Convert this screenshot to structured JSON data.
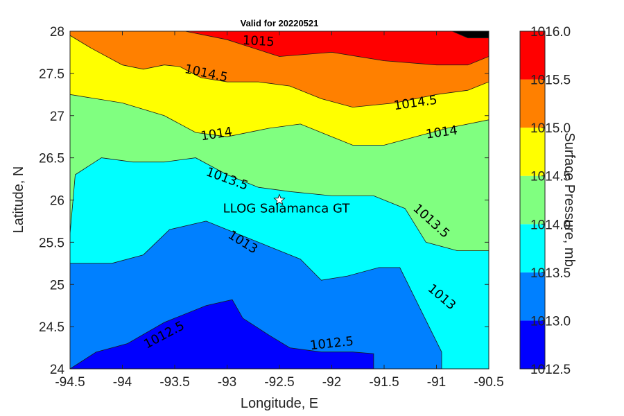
{
  "chart_data": {
    "type": "contour",
    "title": "Valid for 20220521",
    "xlabel": "Longitude, E",
    "ylabel": "Latitude, N",
    "xlim": [
      -94.5,
      -90.5
    ],
    "ylim": [
      24,
      28
    ],
    "xticks": [
      "-94.5",
      "-94",
      "-93.5",
      "-93",
      "-92.5",
      "-92",
      "-91.5",
      "-91",
      "-90.5"
    ],
    "yticks": [
      "24",
      "24.5",
      "25",
      "25.5",
      "26",
      "26.5",
      "27",
      "27.5",
      "28"
    ],
    "levels": [
      1012.5,
      1013.0,
      1013.5,
      1014.0,
      1014.5,
      1015.0,
      1015.5,
      1016.0
    ],
    "level_colors": [
      "#0000ff",
      "#0080ff",
      "#00ffff",
      "#80ff80",
      "#ffff00",
      "#ff8000",
      "#ff0000"
    ],
    "colorbar": {
      "label": "Surface Pressure, mb",
      "ticks": [
        "1012.5",
        "1013.0",
        "1013.5",
        "1014.0",
        "1014.5",
        "1015.0",
        "1015.5",
        "1016.0"
      ]
    },
    "contours": [
      {
        "level": 1012.5,
        "points": [
          [
            -94.5,
            24.0
          ],
          [
            -94.25,
            24.2
          ],
          [
            -93.95,
            24.3
          ],
          [
            -93.6,
            24.55
          ],
          [
            -93.2,
            24.75
          ],
          [
            -92.95,
            24.82
          ],
          [
            -92.85,
            24.6
          ],
          [
            -92.6,
            24.4
          ],
          [
            -92.4,
            24.25
          ],
          [
            -92.1,
            24.2
          ],
          [
            -91.8,
            24.2
          ],
          [
            -91.6,
            24.18
          ],
          [
            -91.6,
            24.0
          ]
        ]
      },
      {
        "level": 1013.0,
        "points": [
          [
            -94.5,
            25.25
          ],
          [
            -94.1,
            25.25
          ],
          [
            -93.8,
            25.35
          ],
          [
            -93.55,
            25.65
          ],
          [
            -93.2,
            25.75
          ],
          [
            -92.9,
            25.6
          ],
          [
            -92.6,
            25.45
          ],
          [
            -92.3,
            25.3
          ],
          [
            -92.1,
            25.05
          ],
          [
            -91.85,
            25.1
          ],
          [
            -91.55,
            25.2
          ],
          [
            -91.35,
            25.2
          ],
          [
            -91.15,
            24.7
          ],
          [
            -90.95,
            24.2
          ],
          [
            -90.95,
            24.0
          ]
        ]
      },
      {
        "level": 1013.5,
        "points": [
          [
            -94.5,
            25.6
          ],
          [
            -94.45,
            26.3
          ],
          [
            -94.2,
            26.5
          ],
          [
            -93.9,
            26.45
          ],
          [
            -93.6,
            26.45
          ],
          [
            -93.3,
            26.5
          ],
          [
            -93.0,
            26.3
          ],
          [
            -92.7,
            26.15
          ],
          [
            -92.4,
            26.1
          ],
          [
            -92.0,
            26.05
          ],
          [
            -91.6,
            26.05
          ],
          [
            -91.3,
            25.9
          ],
          [
            -91.1,
            25.5
          ],
          [
            -90.8,
            25.4
          ],
          [
            -90.5,
            25.4
          ]
        ]
      },
      {
        "level": 1014.0,
        "points": [
          [
            -94.5,
            27.25
          ],
          [
            -94.0,
            27.15
          ],
          [
            -93.6,
            27.0
          ],
          [
            -93.3,
            26.8
          ],
          [
            -93.0,
            26.75
          ],
          [
            -92.6,
            26.85
          ],
          [
            -92.3,
            26.9
          ],
          [
            -92.0,
            26.75
          ],
          [
            -91.8,
            26.65
          ],
          [
            -91.5,
            26.65
          ],
          [
            -91.2,
            26.75
          ],
          [
            -90.9,
            26.85
          ],
          [
            -90.5,
            26.95
          ]
        ]
      },
      {
        "level": 1014.5,
        "points": [
          [
            -94.5,
            27.95
          ],
          [
            -94.3,
            27.8
          ],
          [
            -94.0,
            27.6
          ],
          [
            -93.8,
            27.55
          ],
          [
            -93.6,
            27.6
          ],
          [
            -93.45,
            27.58
          ],
          [
            -93.25,
            27.45
          ],
          [
            -93.0,
            27.4
          ],
          [
            -92.7,
            27.4
          ],
          [
            -92.4,
            27.35
          ],
          [
            -92.1,
            27.2
          ],
          [
            -91.8,
            27.1
          ],
          [
            -91.4,
            27.15
          ],
          [
            -91.0,
            27.25
          ],
          [
            -90.7,
            27.3
          ],
          [
            -90.5,
            27.4
          ]
        ]
      },
      {
        "level": 1015.0,
        "points": [
          [
            -93.4,
            28.0
          ],
          [
            -93.0,
            27.9
          ],
          [
            -92.5,
            27.7
          ],
          [
            -92.0,
            27.75
          ],
          [
            -91.5,
            27.65
          ],
          [
            -91.0,
            27.6
          ],
          [
            -90.7,
            27.6
          ],
          [
            -90.5,
            27.7
          ]
        ]
      },
      {
        "level": 1015.5,
        "points": [
          [
            -90.85,
            28.0
          ],
          [
            -90.7,
            27.92
          ],
          [
            -90.5,
            27.92
          ]
        ]
      }
    ],
    "contour_labels": [
      {
        "text": "1015",
        "lon": -92.7,
        "lat": 27.88,
        "angle": 3
      },
      {
        "text": "1014.5",
        "lon": -93.2,
        "lat": 27.5,
        "angle": 12
      },
      {
        "text": "1014.5",
        "lon": -91.2,
        "lat": 27.15,
        "angle": -8
      },
      {
        "text": "1014",
        "lon": -93.1,
        "lat": 26.78,
        "angle": -9
      },
      {
        "text": "1014",
        "lon": -90.95,
        "lat": 26.8,
        "angle": -8
      },
      {
        "text": "1013.5",
        "lon": -93.0,
        "lat": 26.25,
        "angle": 20
      },
      {
        "text": "1013.5",
        "lon": -91.05,
        "lat": 25.75,
        "angle": 42
      },
      {
        "text": "1013",
        "lon": -92.85,
        "lat": 25.5,
        "angle": 32
      },
      {
        "text": "1013",
        "lon": -90.95,
        "lat": 24.85,
        "angle": 40
      },
      {
        "text": "1012.5",
        "lon": -93.6,
        "lat": 24.4,
        "angle": -28
      },
      {
        "text": "1012.5",
        "lon": -92.0,
        "lat": 24.3,
        "angle": -6
      }
    ],
    "site": {
      "name": "LLOG Salamanca GT",
      "lon": -92.5,
      "lat": 26.0
    }
  }
}
